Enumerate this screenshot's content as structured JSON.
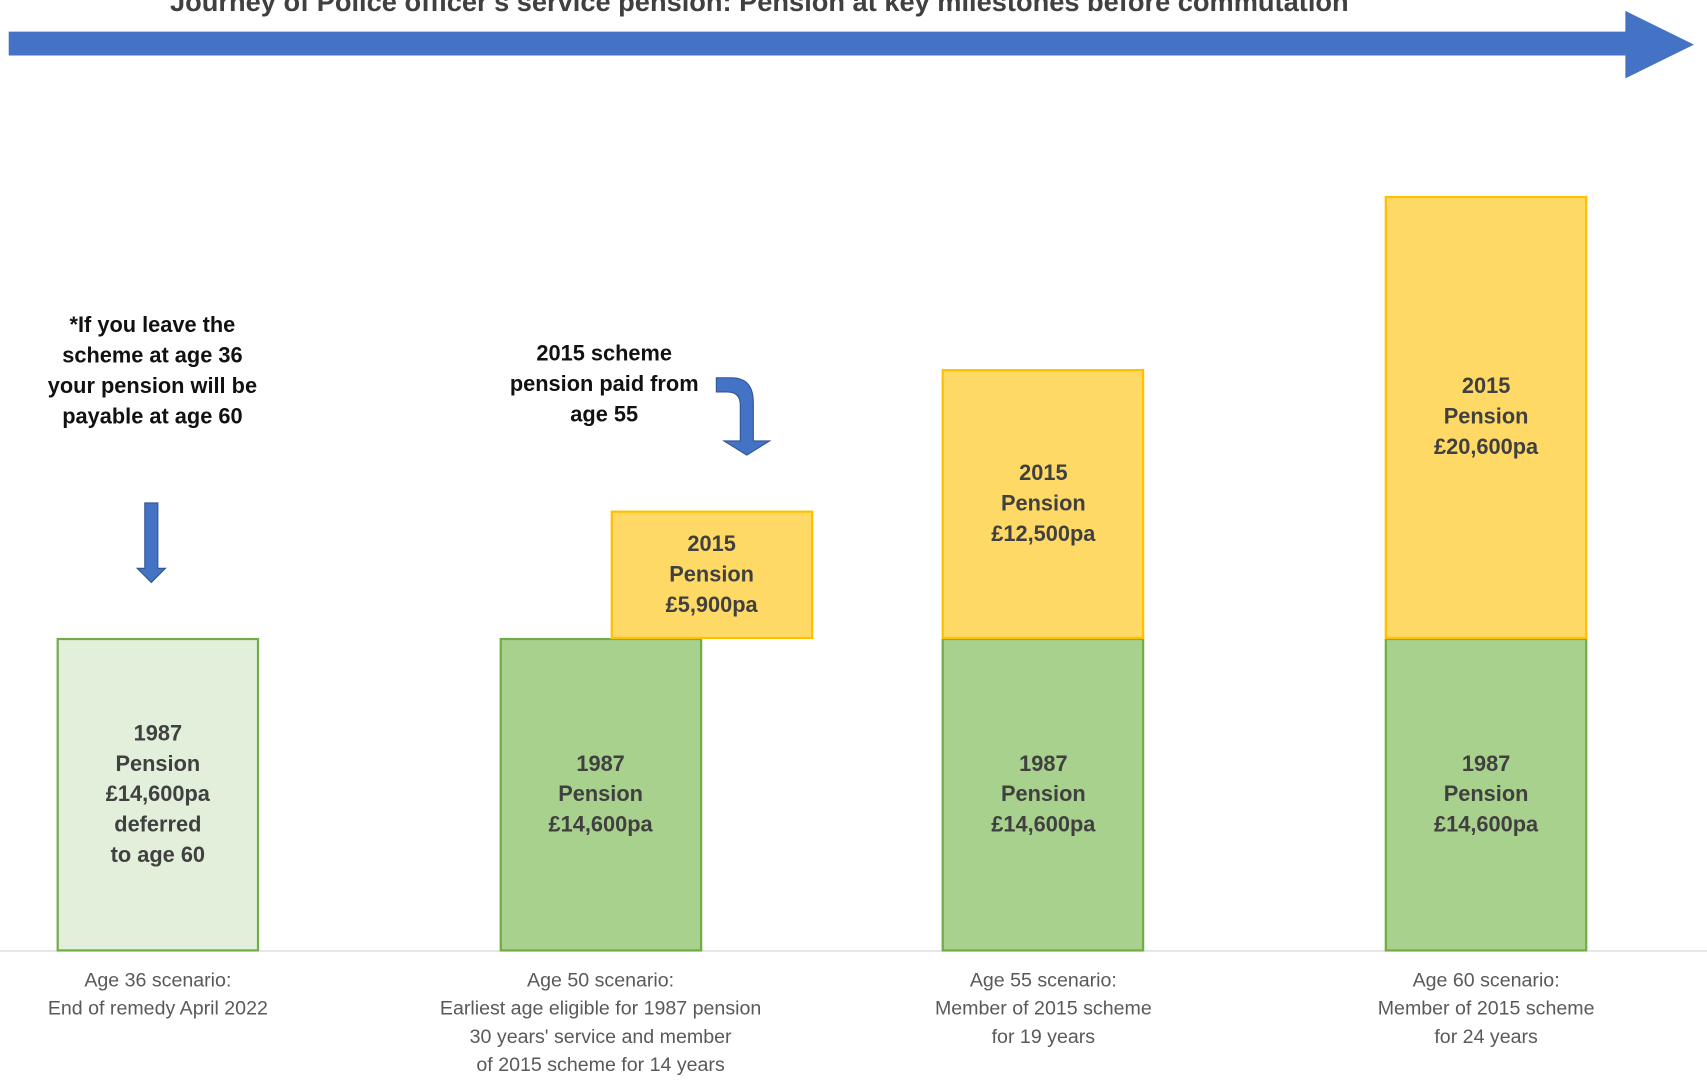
{
  "chart_data": {
    "type": "bar",
    "stacked": true,
    "title": "Journey of Police officer's service pension: Pension at key milestones before commutation",
    "categories": [
      "Age 36 scenario:\nEnd of remedy April 2022",
      "Age 50 scenario:\nEarliest age eligible for 1987 pension\n30 years' service and member\nof 2015 scheme for 14 years",
      "Age 55 scenario:\nMember of 2015 scheme\nfor 19 years",
      "Age 60 scenario:\nMember of 2015 scheme\nfor 24 years"
    ],
    "series": [
      {
        "colors": [
          "#e2efda",
          "#a9d18e",
          "#a9d18e",
          "#a9d18e"
        ],
        "edge_color": "#70ad47",
        "values": [
          14600,
          14600,
          14600,
          14600
        ],
        "value_labels": [
          "1987\nPension\n£14,600pa\ndeferred\nto age 60",
          "1987\nPension\n£14,600pa",
          "1987\nPension\n£14,600pa",
          "1987\nPension\n£14,600pa"
        ]
      },
      {
        "color": "#ffd966",
        "edge_color": "#ffc000",
        "values": [
          null,
          5900,
          12500,
          20600
        ],
        "value_labels": [
          null,
          "2015\nPension\n£5,900pa",
          "2015\nPension\n£12,500pa",
          "2015\nPension\n£20,600pa"
        ]
      }
    ],
    "annotations": [
      "*If you leave the scheme at age 36 your pension will be payable at age 60",
      "2015 scheme pension paid from age 55"
    ]
  }
}
